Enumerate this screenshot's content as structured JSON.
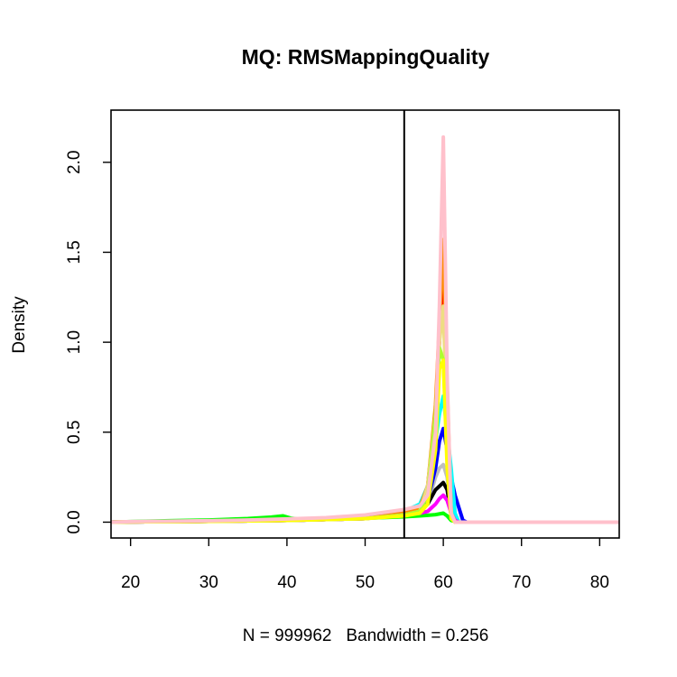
{
  "chart_data": {
    "type": "line",
    "title": "MQ: RMSMappingQuality",
    "xlabel": "N = 999962   Bandwidth = 0.256",
    "ylabel": "Density",
    "xlim": [
      17.5,
      82.5
    ],
    "ylim": [
      -0.088,
      2.29
    ],
    "x_ticks": [
      20,
      30,
      40,
      50,
      60,
      70,
      80
    ],
    "x_tick_labels": [
      "20",
      "30",
      "40",
      "50",
      "60",
      "70",
      "80"
    ],
    "y_ticks": [
      0.0,
      0.5,
      1.0,
      1.5,
      2.0
    ],
    "y_tick_labels": [
      "0.0",
      "0.5",
      "1.0",
      "1.5",
      "2.0"
    ],
    "vline": 55,
    "grid": false,
    "series": [
      {
        "color": "#00FF00",
        "x": [
          17.5,
          20,
          25,
          30,
          35,
          38,
          39.5,
          40.5,
          42,
          45,
          50,
          55,
          57,
          58,
          59,
          60,
          60.5,
          61,
          62,
          65,
          70,
          80,
          82.5
        ],
        "y": [
          0,
          0.003,
          0.008,
          0.012,
          0.02,
          0.028,
          0.035,
          0.022,
          0.015,
          0.018,
          0.022,
          0.03,
          0.035,
          0.038,
          0.042,
          0.05,
          0.035,
          0.01,
          0,
          0,
          0,
          0,
          0
        ]
      },
      {
        "color": "#BEBEBE",
        "x": [
          17.5,
          20,
          30,
          40,
          45,
          50,
          55,
          57,
          58,
          59,
          59.5,
          60,
          60.5,
          61,
          61.5,
          62,
          65,
          70,
          80,
          82.5
        ],
        "y": [
          0,
          0.002,
          0.005,
          0.01,
          0.015,
          0.02,
          0.04,
          0.06,
          0.1,
          0.25,
          0.3,
          0.32,
          0.25,
          0.05,
          0.005,
          0,
          0,
          0,
          0,
          0
        ]
      },
      {
        "color": "#000000",
        "x": [
          17.5,
          20,
          30,
          40,
          45,
          50,
          55,
          57,
          58,
          59,
          59.5,
          60,
          60.5,
          61,
          61.5,
          62,
          65,
          70,
          80,
          82.5
        ],
        "y": [
          0,
          0.002,
          0.005,
          0.01,
          0.015,
          0.02,
          0.045,
          0.07,
          0.1,
          0.18,
          0.2,
          0.22,
          0.18,
          0.04,
          0.005,
          0,
          0,
          0,
          0,
          0
        ]
      },
      {
        "color": "#0000FF",
        "x": [
          17.5,
          20,
          30,
          40,
          45,
          50,
          55,
          57,
          58,
          59,
          59.5,
          60,
          60.5,
          61,
          61.5,
          62,
          62.5,
          63,
          65,
          70,
          80,
          82.5
        ],
        "y": [
          0,
          0.002,
          0.005,
          0.01,
          0.015,
          0.02,
          0.05,
          0.08,
          0.12,
          0.3,
          0.45,
          0.52,
          0.4,
          0.25,
          0.15,
          0.08,
          0.01,
          0,
          0,
          0,
          0,
          0
        ]
      },
      {
        "color": "#00FFFF",
        "x": [
          17.5,
          20,
          30,
          40,
          45,
          50,
          55,
          57,
          58,
          59,
          59.5,
          60,
          60.5,
          61,
          61.5,
          62,
          65,
          70,
          80,
          82.5
        ],
        "y": [
          0,
          0.002,
          0.005,
          0.01,
          0.015,
          0.02,
          0.06,
          0.1,
          0.2,
          0.45,
          0.6,
          0.7,
          0.5,
          0.3,
          0.05,
          0,
          0,
          0,
          0,
          0
        ]
      },
      {
        "color": "#FF0000",
        "x": [
          17.5,
          20,
          30,
          40,
          45,
          50,
          55,
          57,
          58,
          59,
          59.5,
          60,
          60.5,
          61,
          61.5,
          65,
          70,
          80,
          82.5
        ],
        "y": [
          0,
          0.002,
          0.005,
          0.01,
          0.015,
          0.02,
          0.05,
          0.08,
          0.2,
          0.6,
          1.0,
          1.45,
          0.7,
          0.05,
          0,
          0,
          0,
          0,
          0
        ]
      },
      {
        "color": "#FF8C00",
        "x": [
          17.5,
          20,
          30,
          40,
          45,
          50,
          55,
          57,
          58,
          59,
          59.5,
          60,
          60.5,
          61,
          61.5,
          65,
          70,
          80,
          82.5
        ],
        "y": [
          0,
          0.002,
          0.005,
          0.01,
          0.015,
          0.02,
          0.05,
          0.08,
          0.2,
          0.65,
          1.1,
          1.57,
          0.75,
          0.05,
          0,
          0,
          0,
          0,
          0
        ]
      },
      {
        "color": "#FF00FF",
        "x": [
          17.5,
          20,
          30,
          40,
          45,
          50,
          55,
          57,
          58,
          59,
          59.5,
          60,
          60.5,
          61,
          61.5,
          62,
          65,
          70,
          80,
          82.5
        ],
        "y": [
          0,
          0.002,
          0.005,
          0.01,
          0.015,
          0.02,
          0.04,
          0.05,
          0.06,
          0.1,
          0.13,
          0.15,
          0.12,
          0.05,
          0.01,
          0,
          0,
          0,
          0,
          0
        ]
      },
      {
        "color": "#EEDD82",
        "x": [
          17.5,
          20,
          30,
          40,
          45,
          50,
          55,
          57,
          58,
          59,
          59.5,
          60,
          60.5,
          61,
          61.5,
          65,
          70,
          80,
          82.5
        ],
        "y": [
          0,
          0.002,
          0.005,
          0.01,
          0.015,
          0.02,
          0.04,
          0.06,
          0.2,
          0.6,
          1.0,
          1.2,
          0.5,
          0.05,
          0,
          0,
          0,
          0,
          0
        ]
      },
      {
        "color": "#ADFF2F",
        "x": [
          17.5,
          20,
          30,
          40,
          45,
          50,
          55,
          57,
          58,
          59,
          59.5,
          60,
          60.5,
          61,
          61.5,
          65,
          70,
          80,
          82.5
        ],
        "y": [
          0,
          0.002,
          0.005,
          0.01,
          0.015,
          0.02,
          0.04,
          0.06,
          0.15,
          0.6,
          0.97,
          0.9,
          0.4,
          0.05,
          0,
          0,
          0,
          0,
          0
        ]
      },
      {
        "color": "#FFFF00",
        "x": [
          17.5,
          20,
          30,
          40,
          45,
          50,
          55,
          57,
          58,
          59,
          59.5,
          60,
          60.5,
          61,
          61.5,
          65,
          70,
          80,
          82.5
        ],
        "y": [
          0,
          0.002,
          0.005,
          0.01,
          0.015,
          0.02,
          0.035,
          0.05,
          0.1,
          0.4,
          0.85,
          0.9,
          0.3,
          0.02,
          0,
          0,
          0,
          0,
          0
        ]
      },
      {
        "color": "#FFC0CB",
        "x": [
          17.5,
          20,
          30,
          35,
          40,
          45,
          50,
          55,
          57,
          58,
          59,
          59.5,
          60,
          60.5,
          61,
          61.5,
          65,
          70,
          80,
          82.5
        ],
        "y": [
          0,
          0.003,
          0.008,
          0.012,
          0.018,
          0.025,
          0.04,
          0.07,
          0.09,
          0.15,
          0.5,
          1.2,
          2.14,
          0.8,
          0.05,
          0,
          0,
          0,
          0,
          0
        ]
      }
    ]
  }
}
